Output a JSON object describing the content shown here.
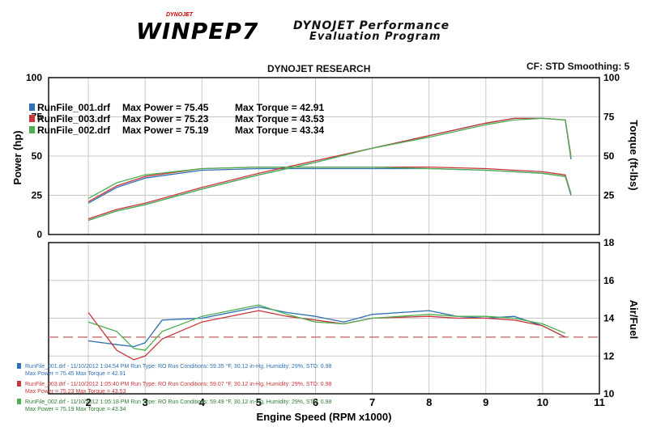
{
  "header": {
    "logo_small": "DYNOJET",
    "logo": "WINPEP7",
    "tagline_1": "DYNOJET Performance",
    "tagline_2": "Evaluation Program"
  },
  "research_label": "DYNOJET RESEARCH",
  "cf_label": "CF: STD  Smoothing: 5",
  "colors": {
    "run1": "#2f6fb3",
    "run3": "#c8363a",
    "run2": "#4caf50",
    "afr_target": "#c87a7a"
  },
  "chart_data": [
    {
      "type": "line",
      "title": "",
      "xlabel": "Engine Speed (RPM x1000)",
      "ylabel_left": "Power (hp)",
      "ylabel_right": "Torque (ft-lbs)",
      "xlim": [
        1.3,
        11
      ],
      "ylim": [
        0,
        100
      ],
      "yticks_left": [
        0,
        25,
        50,
        75,
        100
      ],
      "yticks_right": [
        25,
        50,
        75,
        100
      ],
      "legend": [
        {
          "name": "RunFile_001.drf",
          "power_text": "Max Power = 75.45",
          "torque_text": "Max Torque = 42.91"
        },
        {
          "name": "RunFile_003.drf",
          "power_text": "Max Power = 75.23",
          "torque_text": "Max Torque = 43.53"
        },
        {
          "name": "RunFile_002.drf",
          "power_text": "Max Power = 75.19",
          "torque_text": "Max Torque = 43.34"
        }
      ],
      "series": [
        {
          "name": "RunFile_001.drf",
          "x": [
            2.0,
            2.5,
            3.0,
            4.0,
            5.0,
            6.0,
            7.0,
            8.0,
            9.0,
            9.5,
            10.0,
            10.4,
            10.5
          ],
          "power": [
            9,
            15,
            19,
            29,
            38,
            46,
            55,
            63,
            71,
            74,
            74,
            73,
            48
          ],
          "torque": [
            20,
            30,
            36,
            41,
            42,
            42,
            42,
            42,
            41,
            40,
            39,
            37,
            25
          ]
        },
        {
          "name": "RunFile_003.drf",
          "x": [
            2.0,
            2.5,
            3.0,
            4.0,
            5.0,
            6.0,
            7.0,
            8.0,
            9.0,
            9.5,
            10.0,
            10.4,
            10.5
          ],
          "power": [
            10,
            16,
            20,
            30,
            39,
            47,
            55,
            63,
            71,
            74,
            74,
            73,
            50
          ],
          "torque": [
            21,
            31,
            37,
            42,
            43,
            43,
            43,
            43,
            42,
            41,
            40,
            38,
            26
          ]
        },
        {
          "name": "RunFile_002.drf",
          "x": [
            2.0,
            2.5,
            3.0,
            4.0,
            5.0,
            6.0,
            7.0,
            8.0,
            9.0,
            9.5,
            10.0,
            10.4,
            10.5
          ],
          "power": [
            9,
            15,
            19,
            29,
            38,
            46,
            55,
            62,
            70,
            73,
            74,
            73,
            49
          ],
          "torque": [
            23,
            33,
            38,
            42,
            43,
            43,
            43,
            42,
            41,
            40,
            39,
            37,
            26
          ]
        }
      ]
    },
    {
      "type": "line",
      "title": "",
      "xlabel": "Engine Speed (RPM x1000)",
      "ylabel_right": "Air/Fuel",
      "xlim": [
        1.3,
        11
      ],
      "ylim": [
        10,
        18
      ],
      "yticks_right": [
        10,
        12,
        14,
        16,
        18
      ],
      "xticks": [
        2,
        3,
        4,
        5,
        6,
        7,
        8,
        9,
        10,
        11
      ],
      "target_afr": 13.0,
      "series": [
        {
          "name": "RunFile_001.drf",
          "x": [
            2.0,
            2.5,
            2.8,
            3.0,
            3.3,
            4.0,
            5.0,
            5.5,
            6.0,
            6.5,
            7.0,
            8.0,
            8.5,
            9.0,
            9.5,
            10.0,
            10.4
          ],
          "afr": [
            12.8,
            12.6,
            12.5,
            12.7,
            13.9,
            14.0,
            14.6,
            14.3,
            14.1,
            13.8,
            14.2,
            14.4,
            14.1,
            14.0,
            14.1,
            13.6,
            13.0
          ]
        },
        {
          "name": "RunFile_003.drf",
          "x": [
            2.0,
            2.5,
            2.8,
            3.0,
            3.3,
            4.0,
            5.0,
            5.5,
            6.0,
            6.5,
            7.0,
            8.0,
            8.5,
            9.0,
            9.5,
            10.0,
            10.4
          ],
          "afr": [
            14.3,
            12.3,
            11.8,
            12.0,
            12.9,
            13.8,
            14.4,
            14.1,
            13.9,
            13.7,
            14.0,
            14.1,
            14.0,
            14.0,
            13.9,
            13.6,
            13.0
          ]
        },
        {
          "name": "RunFile_002.drf",
          "x": [
            2.0,
            2.5,
            2.8,
            3.0,
            3.3,
            4.0,
            5.0,
            5.5,
            6.0,
            6.5,
            7.0,
            8.0,
            8.5,
            9.0,
            9.5,
            10.0,
            10.4
          ],
          "afr": [
            13.8,
            13.3,
            12.4,
            12.3,
            13.3,
            14.1,
            14.7,
            14.2,
            13.8,
            13.7,
            14.0,
            14.2,
            14.1,
            14.1,
            14.0,
            13.7,
            13.2
          ]
        }
      ]
    }
  ],
  "run_info": [
    {
      "line1": "RunFile_001.drf - 11/10/2012 1:04:54 PM  Run Type: RO  Run Conditions: 59.35 °F, 30.12 in-Hg,  Humidity:  29%, STD: 0.98",
      "line2": "Max Power = 75.45  Max Torque = 42.91"
    },
    {
      "line1": "RunFile_003.drf - 11/10/2012 1:05:40 PM  Run Type: RO  Run Conditions: 59.07 °F, 30.12 in-Hg,  Humidity:  29%, STD: 0.98",
      "line2": "Max Power = 75.23  Max Torque = 43.53"
    },
    {
      "line1": "RunFile_002.drf - 11/10/2012 1:05:18 PM  Run Type: RO  Run Conditions: 59.49 °F, 30.12 in-Hg,  Humidity:  29%, STD: 0.98",
      "line2": "Max Power = 75.19  Max Torque = 43.34"
    }
  ]
}
